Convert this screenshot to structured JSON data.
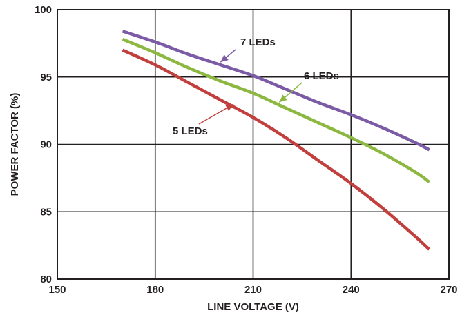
{
  "chart_data": {
    "type": "line",
    "title": "",
    "xlabel": "LINE VOLTAGE (V)",
    "ylabel": "POWER FACTOR (%)",
    "xlim": [
      150,
      270
    ],
    "ylim": [
      80,
      100
    ],
    "xticks": [
      "150",
      "180",
      "210",
      "240",
      "270"
    ],
    "yticks": [
      "80",
      "85",
      "90",
      "95",
      "100"
    ],
    "grid": true,
    "series": [
      {
        "name": "7 LEDs",
        "color": "#7b5aa6",
        "x": [
          170,
          180,
          190,
          200,
          210,
          220,
          230,
          240,
          250,
          260,
          264
        ],
        "y": [
          98.4,
          97.6,
          96.7,
          95.9,
          95.1,
          94.1,
          93.1,
          92.2,
          91.2,
          90.1,
          89.6
        ]
      },
      {
        "name": "6 LEDs",
        "color": "#8cb841",
        "x": [
          170,
          180,
          190,
          200,
          210,
          220,
          230,
          240,
          250,
          260,
          264
        ],
        "y": [
          97.8,
          96.8,
          95.7,
          94.7,
          93.8,
          92.7,
          91.6,
          90.5,
          89.3,
          87.9,
          87.2
        ]
      },
      {
        "name": "5 LEDs",
        "color": "#c1403d",
        "x": [
          170,
          180,
          190,
          200,
          210,
          220,
          230,
          240,
          250,
          260,
          264
        ],
        "y": [
          97.0,
          95.9,
          94.6,
          93.3,
          92.0,
          90.5,
          88.8,
          87.1,
          85.2,
          83.1,
          82.2
        ]
      }
    ]
  }
}
